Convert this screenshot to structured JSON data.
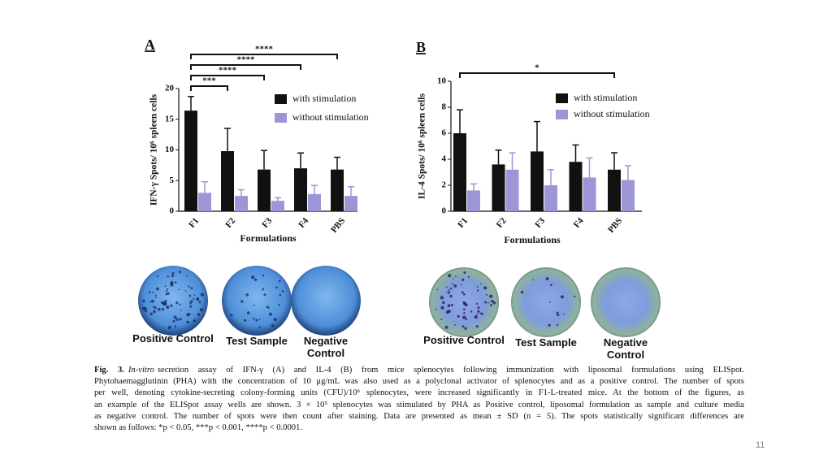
{
  "chart_data": [
    {
      "type": "bar",
      "panel": "A",
      "y_label": "IFN-γ Spots/ 10⁶ spleen cells",
      "x_label": "Formulations",
      "categories": [
        "F1",
        "F2",
        "F3",
        "F4",
        "PBS"
      ],
      "series": [
        {
          "name": "with stimulation",
          "color": "#111111",
          "values": [
            16.4,
            9.8,
            6.8,
            7.0,
            6.8
          ],
          "errors": [
            2.3,
            3.7,
            3.1,
            2.5,
            2.0
          ]
        },
        {
          "name": "without stimulation",
          "color": "#9d96d6",
          "values": [
            3.0,
            2.5,
            1.7,
            2.8,
            2.5
          ],
          "errors": [
            1.8,
            1.0,
            0.5,
            1.4,
            1.5
          ]
        }
      ],
      "ylim": [
        0,
        20
      ],
      "yticks": [
        0,
        5,
        10,
        15,
        20
      ],
      "significance": [
        {
          "from": "F1",
          "to": "F2",
          "label": "***"
        },
        {
          "from": "F1",
          "to": "F3",
          "label": "****"
        },
        {
          "from": "F1",
          "to": "F4",
          "label": "****"
        },
        {
          "from": "F1",
          "to": "PBS",
          "label": "****"
        }
      ]
    },
    {
      "type": "bar",
      "panel": "B",
      "y_label": "IL-4 Spots/ 10⁶ spleen cells",
      "x_label": "Formulations",
      "categories": [
        "F1",
        "F2",
        "F3",
        "F4",
        "PBS"
      ],
      "series": [
        {
          "name": "with stimulation",
          "color": "#111111",
          "values": [
            6.0,
            3.6,
            4.6,
            3.8,
            3.2
          ],
          "errors": [
            1.8,
            1.1,
            2.3,
            1.3,
            1.3
          ]
        },
        {
          "name": "without stimulation",
          "color": "#9d96d6",
          "values": [
            1.6,
            3.2,
            2.0,
            2.6,
            2.4
          ],
          "errors": [
            0.5,
            1.3,
            1.2,
            1.5,
            1.1
          ]
        }
      ],
      "ylim": [
        0,
        10
      ],
      "yticks": [
        0,
        2,
        4,
        6,
        8,
        10
      ],
      "significance": [
        {
          "from": "F1",
          "to": "PBS",
          "label": "*"
        }
      ]
    }
  ],
  "wells": [
    {
      "labels": [
        "Positive Control",
        "Test Sample",
        "Negative Control"
      ]
    },
    {
      "labels": [
        "Positive Control",
        "Test Sample",
        "Negative Control"
      ]
    }
  ],
  "caption": {
    "label": "Fig. 3.",
    "italic": "In-vitro",
    "lines": [
      "secretion assay of IFN-γ (A) and IL-4 (B) from mice splenocytes following immunization with liposomal formulations using ELISpot.",
      "Phytohaemagglutinin (PHA) with the concentration of 10 μg/mL was also used as a polyclonal activator of splenocytes and as a positive control. The number of spots",
      "per well, denoting cytokine-secreting colony-forming units (CFU)/10⁶ splenocytes, were increased significantly in F1-L-treated mice. At the bottom of the figures, as",
      "an example of the ELISpot assay wells are shown. 3 × 10⁵ splenocytes was stimulated by PHA as Positive control, liposomal formulation as sample and culture media",
      "as negative control. The number of spots were then count after staining. Data are presented as mean ± SD (n = 5). The spots statistically significant differences are",
      "shown as follows: *p < 0.05, ***p < 0.001, ****p < 0.0001."
    ]
  },
  "page_number": "11"
}
